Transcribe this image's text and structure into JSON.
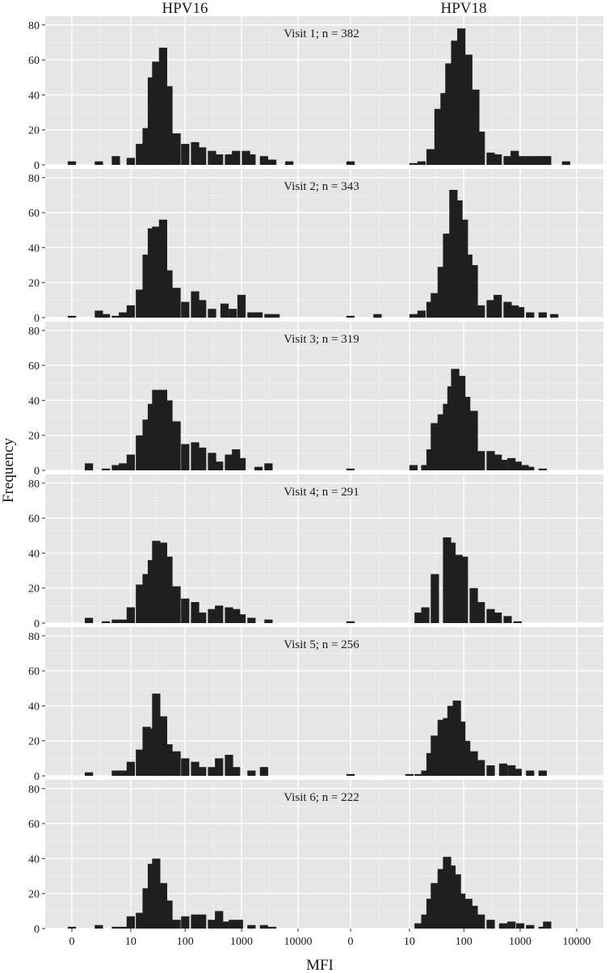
{
  "chart_data": {
    "type": "bar",
    "subtype": "histogram-facet-grid",
    "xlabel": "MFI",
    "ylabel": "Frequency",
    "x_scale": "log10(x+1)",
    "ylim": [
      0,
      85
    ],
    "y_ticks": [
      0,
      20,
      40,
      60,
      80
    ],
    "x_ticks": [
      {
        "value": 0,
        "label": "0"
      },
      {
        "value": 10,
        "label": "10"
      },
      {
        "value": 100,
        "label": "100"
      },
      {
        "value": 1000,
        "label": "1000"
      },
      {
        "value": 10000,
        "label": "10000"
      }
    ],
    "grid": true,
    "bar_color": "#1f1f1f",
    "panel_background": "#e6e6e6",
    "columns": [
      "HPV16",
      "HPV18"
    ],
    "visits": [
      {
        "label": "Visit 1; n = 382",
        "HPV16": {
          "x": [
            0,
            2,
            5,
            10,
            15,
            20,
            25,
            30,
            40,
            50,
            70,
            100,
            150,
            200,
            300,
            400,
            600,
            800,
            1200,
            1500,
            2500,
            3500,
            7000
          ],
          "y": [
            2,
            2,
            5,
            4,
            12,
            21,
            50,
            59,
            67,
            45,
            18,
            12,
            13,
            10,
            8,
            6,
            6,
            8,
            8,
            6,
            5,
            3,
            2
          ]
        },
        "HPV18": {
          "x": [
            0,
            12,
            17,
            25,
            35,
            45,
            55,
            70,
            90,
            120,
            160,
            200,
            300,
            400,
            600,
            800,
            1100,
            1500,
            2000,
            2500,
            3000,
            6500
          ],
          "y": [
            2,
            1,
            2,
            9,
            32,
            41,
            58,
            71,
            78,
            63,
            43,
            19,
            7,
            6,
            5,
            8,
            5,
            5,
            5,
            5,
            5,
            2
          ]
        }
      },
      {
        "label": "Visit 2; n = 343",
        "HPV16": {
          "x": [
            0,
            2,
            3,
            5,
            7,
            10,
            15,
            20,
            25,
            30,
            40,
            50,
            70,
            100,
            150,
            200,
            300,
            500,
            700,
            1000,
            1500,
            2000,
            3000,
            4000
          ],
          "y": [
            1,
            4,
            2,
            1,
            3,
            7,
            16,
            36,
            51,
            52,
            56,
            27,
            17,
            9,
            15,
            10,
            5,
            8,
            5,
            13,
            3,
            3,
            2,
            2
          ]
        },
        "HPV18": {
          "x": [
            0,
            2,
            12,
            17,
            25,
            30,
            40,
            50,
            65,
            80,
            100,
            120,
            150,
            200,
            300,
            400,
            600,
            800,
            1000,
            1500,
            2500,
            4000
          ],
          "y": [
            1,
            2,
            2,
            4,
            9,
            14,
            29,
            48,
            73,
            67,
            56,
            36,
            30,
            7,
            10,
            13,
            9,
            7,
            6,
            3,
            3,
            2
          ]
        }
      },
      {
        "label": "Visit 3; n = 319",
        "HPV16": {
          "x": [
            1,
            3,
            5,
            7,
            10,
            15,
            20,
            25,
            30,
            40,
            50,
            70,
            100,
            150,
            200,
            300,
            400,
            600,
            800,
            1000,
            2000,
            3000
          ],
          "y": [
            4,
            1,
            3,
            4,
            9,
            20,
            29,
            38,
            46,
            46,
            40,
            28,
            15,
            16,
            13,
            10,
            5,
            9,
            12,
            7,
            2,
            4
          ]
        },
        "HPV18": {
          "x": [
            0,
            12,
            20,
            25,
            30,
            40,
            50,
            60,
            70,
            90,
            110,
            150,
            200,
            300,
            400,
            500,
            700,
            900,
            1200,
            1500,
            2500
          ],
          "y": [
            1,
            3,
            3,
            12,
            27,
            32,
            38,
            48,
            58,
            54,
            42,
            34,
            11,
            11,
            9,
            6,
            7,
            5,
            3,
            2,
            1
          ]
        }
      },
      {
        "label": "Visit 4; n = 291",
        "HPV16": {
          "x": [
            1,
            3,
            5,
            7,
            10,
            15,
            20,
            25,
            30,
            40,
            50,
            70,
            100,
            150,
            200,
            300,
            400,
            600,
            800,
            1000,
            1500,
            3000
          ],
          "y": [
            3,
            1,
            2,
            2,
            9,
            22,
            28,
            36,
            47,
            46,
            38,
            21,
            14,
            12,
            6,
            8,
            10,
            9,
            8,
            5,
            3,
            2
          ]
        },
        "HPV18": {
          "x": [
            0,
            15,
            20,
            30,
            50,
            60,
            80,
            100,
            150,
            200,
            300,
            400,
            600,
            900
          ],
          "y": [
            1,
            6,
            9,
            28,
            49,
            46,
            39,
            38,
            20,
            12,
            8,
            6,
            4,
            1
          ]
        }
      },
      {
        "label": "Visit 5; n = 256",
        "HPV16": {
          "x": [
            1,
            3,
            5,
            7,
            10,
            15,
            20,
            25,
            30,
            40,
            50,
            70,
            100,
            150,
            200,
            300,
            400,
            600,
            800,
            1500,
            2500
          ],
          "y": [
            2,
            0,
            3,
            3,
            8,
            15,
            28,
            27,
            47,
            34,
            18,
            14,
            10,
            8,
            5,
            5,
            10,
            12,
            5,
            3,
            5
          ]
        },
        "HPV18": {
          "x": [
            0,
            10,
            15,
            20,
            25,
            30,
            40,
            50,
            60,
            75,
            90,
            110,
            150,
            200,
            300,
            500,
            700,
            900,
            1500,
            2500
          ],
          "y": [
            1,
            1,
            1,
            3,
            13,
            23,
            32,
            33,
            40,
            43,
            31,
            20,
            14,
            9,
            6,
            7,
            6,
            4,
            3,
            3
          ]
        }
      },
      {
        "label": "Visit 6; n = 222",
        "HPV16": {
          "x": [
            0,
            2,
            5,
            7,
            10,
            15,
            20,
            25,
            30,
            40,
            50,
            70,
            100,
            150,
            200,
            300,
            400,
            500,
            700,
            900,
            1500,
            2500,
            3500
          ],
          "y": [
            1,
            2,
            1,
            1,
            7,
            9,
            23,
            37,
            40,
            26,
            16,
            5,
            7,
            8,
            8,
            5,
            10,
            4,
            5,
            5,
            2,
            2,
            1
          ]
        },
        "HPV18": {
          "x": [
            15,
            20,
            25,
            30,
            40,
            50,
            60,
            75,
            90,
            120,
            150,
            200,
            300,
            500,
            700,
            1000,
            1500,
            2500,
            3000
          ],
          "y": [
            3,
            8,
            17,
            26,
            34,
            41,
            36,
            31,
            20,
            17,
            13,
            8,
            5,
            3,
            4,
            3,
            2,
            1,
            4
          ]
        }
      }
    ]
  }
}
